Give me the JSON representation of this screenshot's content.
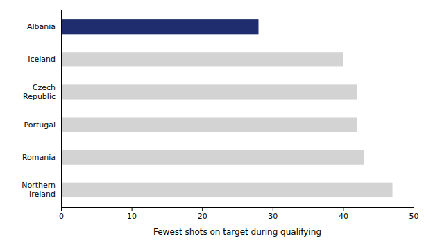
{
  "chart_data": {
    "type": "bar",
    "orientation": "horizontal",
    "categories": [
      "Albania",
      "Iceland",
      "Czech\nRepublic",
      "Portugal",
      "Romania",
      "Northern\nIreland"
    ],
    "values": [
      28,
      40,
      42,
      42,
      43,
      47
    ],
    "colors": [
      "#1f2d6e",
      "#d3d3d3",
      "#d3d3d3",
      "#d3d3d3",
      "#d3d3d3",
      "#d3d3d3"
    ],
    "xlabel": "Fewest shots on target during qualifying",
    "xlim": [
      0,
      50
    ],
    "xticks": [
      0,
      10,
      20,
      30,
      40,
      50
    ],
    "grid": false
  }
}
